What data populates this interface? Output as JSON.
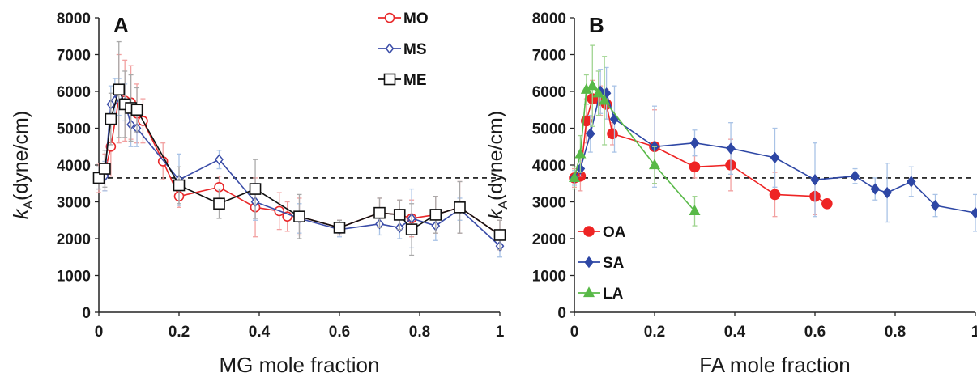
{
  "colors": {
    "MO": "#e8282a",
    "MS": "#3b4da8",
    "ME": "#111111",
    "OA": "#ee2424",
    "SA": "#2e47a5",
    "LA": "#58b947",
    "err_red": "#f2a0a0",
    "err_blue": "#a9c3e6",
    "err_gray": "#a9a9a9",
    "err_green": "#9fd48f"
  },
  "y_label_main": "k",
  "y_label_sub": "A",
  "y_label_unit": "(dyne/cm)",
  "chart_data": [
    {
      "type": "line",
      "panel": "A",
      "xlabel": "MG mole fraction",
      "xlim": [
        0,
        1
      ],
      "ylim": [
        0,
        8000
      ],
      "x_ticks": [
        "0",
        "0.2",
        "0.4",
        "0.6",
        "0.8",
        "1"
      ],
      "y_ticks": [
        "0",
        "1000",
        "2000",
        "3000",
        "4000",
        "5000",
        "6000",
        "7000",
        "8000"
      ],
      "reference_line": 3650,
      "legend_position": "top-right",
      "series": [
        {
          "name": "MO",
          "marker": "circle-open",
          "color": "#e8282a",
          "err_color": "#f2a0a0",
          "x": [
            0,
            0.015,
            0.03,
            0.05,
            0.065,
            0.08,
            0.095,
            0.11,
            0.16,
            0.2,
            0.3,
            0.39,
            0.45,
            0.47,
            0.5,
            0.6,
            0.7,
            0.75,
            0.78,
            0.84,
            0.9,
            1.0
          ],
          "y": [
            3650,
            3800,
            4500,
            5800,
            5750,
            5700,
            5400,
            5200,
            4100,
            3150,
            3400,
            2850,
            2750,
            2600,
            2600,
            2300,
            2700,
            2650,
            2550,
            2650,
            2850,
            2100
          ],
          "err": [
            400,
            500,
            800,
            1200,
            1100,
            1000,
            800,
            600,
            500,
            300,
            300,
            800,
            500,
            400,
            500,
            200,
            400,
            400,
            500,
            500,
            700,
            400
          ]
        },
        {
          "name": "MS",
          "marker": "diamond-open",
          "color": "#3b4da8",
          "err_color": "#a9c3e6",
          "x": [
            0,
            0.015,
            0.03,
            0.04,
            0.05,
            0.065,
            0.08,
            0.095,
            0.2,
            0.3,
            0.39,
            0.5,
            0.6,
            0.7,
            0.75,
            0.78,
            0.84,
            0.9,
            1.0
          ],
          "y": [
            3650,
            3700,
            5650,
            5750,
            5850,
            5700,
            5100,
            5000,
            3600,
            4150,
            3000,
            2550,
            2250,
            2400,
            2300,
            2550,
            2350,
            2800,
            1800
          ],
          "err": [
            300,
            400,
            500,
            600,
            500,
            500,
            600,
            500,
            700,
            250,
            500,
            400,
            200,
            300,
            300,
            800,
            400,
            300,
            300
          ]
        },
        {
          "name": "ME",
          "marker": "square-open",
          "color": "#111111",
          "err_color": "#a9a9a9",
          "x": [
            0,
            0.015,
            0.03,
            0.05,
            0.065,
            0.08,
            0.095,
            0.2,
            0.3,
            0.39,
            0.5,
            0.6,
            0.7,
            0.75,
            0.78,
            0.84,
            0.9,
            1.0
          ],
          "y": [
            3650,
            3900,
            5250,
            6050,
            5650,
            5550,
            5500,
            3450,
            2950,
            3350,
            2600,
            2300,
            2700,
            2650,
            2250,
            2650,
            2850,
            2100
          ],
          "err": [
            300,
            500,
            700,
            1300,
            900,
            900,
            600,
            500,
            400,
            800,
            600,
            200,
            400,
            400,
            700,
            500,
            700,
            400
          ]
        }
      ]
    },
    {
      "type": "line",
      "panel": "B",
      "xlabel": "FA mole fraction",
      "xlim": [
        0,
        1
      ],
      "ylim": [
        0,
        8000
      ],
      "x_ticks": [
        "0",
        "0.2",
        "0.4",
        "0.6",
        "0.8",
        "1"
      ],
      "y_ticks": [
        "0",
        "1000",
        "2000",
        "3000",
        "4000",
        "5000",
        "6000",
        "7000",
        "8000"
      ],
      "reference_line": 3650,
      "legend_position": "bottom-left",
      "series": [
        {
          "name": "OA",
          "marker": "circle-filled",
          "color": "#ee2424",
          "err_color": "#f2a0a0",
          "x": [
            0,
            0.015,
            0.03,
            0.045,
            0.065,
            0.08,
            0.095,
            0.2,
            0.3,
            0.39,
            0.5,
            0.6,
            0.63
          ],
          "y": [
            3650,
            3700,
            5200,
            5800,
            5750,
            5650,
            4850,
            4500,
            3950,
            4000,
            3200,
            3150,
            2950
          ],
          "err": [
            250,
            400,
            600,
            500,
            400,
            400,
            300,
            1000,
            300,
            700,
            600,
            500,
            0
          ]
        },
        {
          "name": "SA",
          "marker": "diamond-filled",
          "color": "#2e47a5",
          "err_color": "#a9c3e6",
          "x": [
            0,
            0.015,
            0.04,
            0.065,
            0.08,
            0.1,
            0.2,
            0.3,
            0.39,
            0.5,
            0.6,
            0.7,
            0.75,
            0.78,
            0.84,
            0.9,
            1.0
          ],
          "y": [
            3650,
            3900,
            4850,
            6000,
            5950,
            5250,
            4500,
            4600,
            4450,
            4200,
            3600,
            3700,
            3350,
            3250,
            3550,
            2900,
            2700
          ],
          "err": [
            200,
            200,
            500,
            600,
            700,
            900,
            1100,
            350,
            700,
            800,
            1000,
            200,
            300,
            800,
            400,
            300,
            500
          ]
        },
        {
          "name": "LA",
          "marker": "triangle-filled",
          "color": "#58b947",
          "err_color": "#9fd48f",
          "x": [
            0,
            0.015,
            0.03,
            0.045,
            0.06,
            0.075,
            0.2,
            0.3
          ],
          "y": [
            3650,
            4300,
            6050,
            6150,
            5950,
            5750,
            4000,
            2750
          ],
          "err": [
            300,
            500,
            400,
            1100,
            600,
            1200,
            500,
            400
          ]
        }
      ]
    }
  ]
}
